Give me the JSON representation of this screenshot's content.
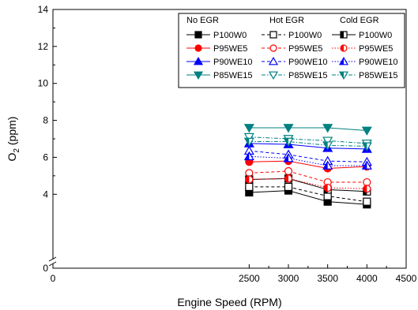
{
  "chart_data": {
    "type": "line",
    "xlabel": "Engine Speed (RPM)",
    "ylabel_main": "O",
    "ylabel_sub": "2",
    "ylabel_unit": " (ppm)",
    "xlim": [
      0,
      4500
    ],
    "ylim": [
      0,
      14
    ],
    "axis_break": true,
    "x_ticks": [
      0,
      2500,
      3000,
      3500,
      4000,
      4500
    ],
    "y_ticks": [
      0,
      4,
      6,
      8,
      10,
      12,
      14
    ],
    "x": [
      2500,
      3000,
      3500,
      4000
    ],
    "legend_placement": "top-right",
    "legend_groups": [
      "No EGR",
      "Hot EGR",
      "Cold EGR"
    ],
    "series": [
      {
        "name": "P100W0",
        "group": "No EGR",
        "color": "#000000",
        "marker": "square",
        "fill": "full",
        "dash": "solid",
        "values": [
          4.1,
          4.2,
          3.6,
          3.45
        ]
      },
      {
        "name": "P95WE5",
        "group": "No EGR",
        "color": "#ff0000",
        "marker": "circle",
        "fill": "full",
        "dash": "solid",
        "values": [
          5.75,
          5.8,
          5.4,
          5.5
        ]
      },
      {
        "name": "P90WE10",
        "group": "No EGR",
        "color": "#0000ff",
        "marker": "triangle-up",
        "fill": "full",
        "dash": "solid",
        "values": [
          6.75,
          6.7,
          6.5,
          6.45
        ]
      },
      {
        "name": "P85WE15",
        "group": "No EGR",
        "color": "#008080",
        "marker": "triangle-down",
        "fill": "full",
        "dash": "solid",
        "values": [
          7.6,
          7.6,
          7.6,
          7.45
        ]
      },
      {
        "name": "P100W0",
        "group": "Hot EGR",
        "color": "#000000",
        "marker": "square",
        "fill": "open",
        "dash": "dash",
        "values": [
          4.4,
          4.4,
          3.9,
          3.6
        ]
      },
      {
        "name": "P95WE5",
        "group": "Hot EGR",
        "color": "#ff0000",
        "marker": "circle",
        "fill": "open",
        "dash": "dash",
        "values": [
          5.15,
          5.25,
          4.65,
          4.65
        ]
      },
      {
        "name": "P90WE10",
        "group": "Hot EGR",
        "color": "#0000ff",
        "marker": "triangle-up",
        "fill": "open",
        "dash": "dash",
        "values": [
          6.35,
          6.15,
          5.8,
          5.75
        ]
      },
      {
        "name": "P85WE15",
        "group": "Hot EGR",
        "color": "#008080",
        "marker": "triangle-down",
        "fill": "open",
        "dash": "dashdot",
        "values": [
          7.1,
          7.0,
          6.9,
          6.75
        ]
      },
      {
        "name": "P100W0",
        "group": "Cold EGR",
        "color": "#000000",
        "marker": "square",
        "fill": "half",
        "dash": "solid",
        "values": [
          4.8,
          4.85,
          4.25,
          4.15
        ]
      },
      {
        "name": "P95WE5",
        "group": "Cold EGR",
        "color": "#ff0000",
        "marker": "circle",
        "fill": "half",
        "dash": "dot",
        "values": [
          4.8,
          4.85,
          4.35,
          4.3
        ]
      },
      {
        "name": "P90WE10",
        "group": "Cold EGR",
        "color": "#0000ff",
        "marker": "triangle-up",
        "fill": "half",
        "dash": "dot",
        "values": [
          6.05,
          5.95,
          5.55,
          5.55
        ]
      },
      {
        "name": "P85WE15",
        "group": "Cold EGR",
        "color": "#008080",
        "marker": "triangle-down",
        "fill": "half",
        "dash": "dashdot",
        "values": [
          6.85,
          6.85,
          6.65,
          6.6
        ]
      }
    ]
  }
}
